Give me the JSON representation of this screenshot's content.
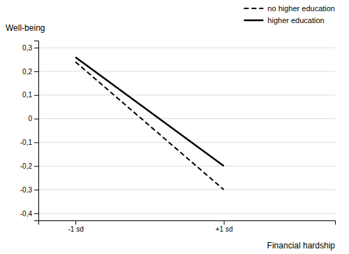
{
  "chart_data": {
    "type": "line",
    "x_label": "Financial hardship",
    "y_label": "Well-being",
    "x": [
      -1,
      1
    ],
    "series": [
      {
        "name": "no higher education",
        "color": "#000000",
        "line_style": "dashed",
        "values": [
          0.24,
          -0.3
        ]
      },
      {
        "name": "higher education",
        "color": "#000000",
        "line_style": "solid",
        "values": [
          0.26,
          -0.2
        ]
      }
    ],
    "xlim": [
      -1.5,
      2.5
    ],
    "xticks": [
      {
        "value": -1,
        "label": "-1 sd"
      },
      {
        "value": 1,
        "label": "+1 sd"
      }
    ],
    "ylim": [
      -0.43,
      0.33
    ],
    "yticks": [
      {
        "value": -0.4,
        "label": "-0,4"
      },
      {
        "value": -0.3,
        "label": "-0,3"
      },
      {
        "value": -0.2,
        "label": "-0,2"
      },
      {
        "value": -0.1,
        "label": "-0,1"
      },
      0,
      {
        "value": 0.1,
        "label": "0,1"
      },
      {
        "value": 0.2,
        "label": "0,2"
      },
      {
        "value": 0.3,
        "label": "0,3"
      }
    ],
    "grid": true,
    "legend": "upper right"
  }
}
